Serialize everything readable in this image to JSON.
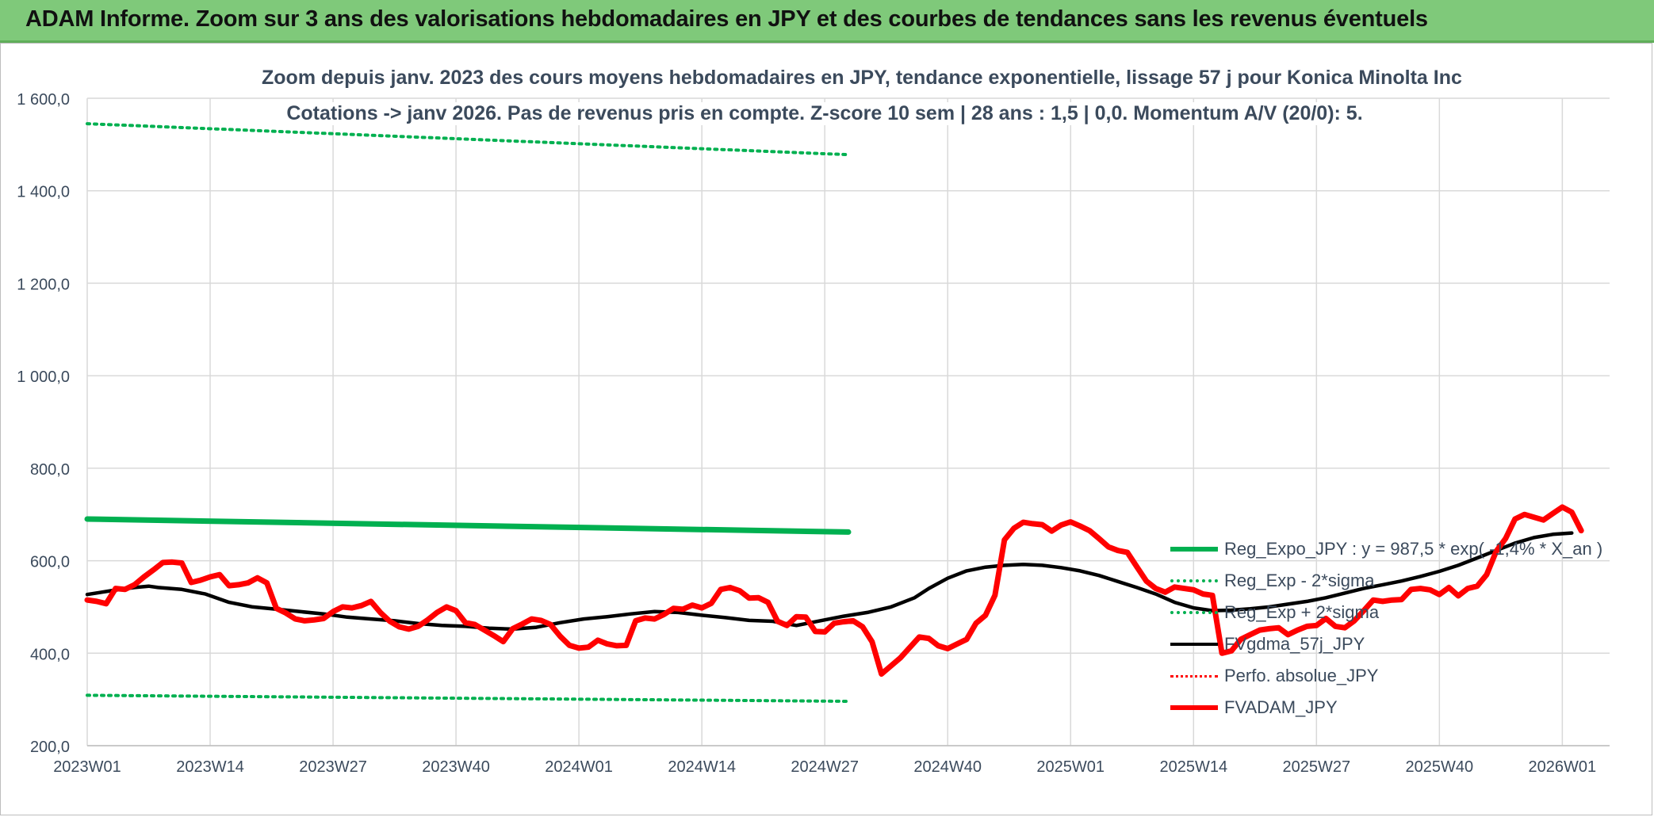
{
  "banner": {
    "title": "ADAM Informe. Zoom sur 3 ans des valorisations hebdomadaires en JPY et des courbes de tendances sans les revenus éventuels"
  },
  "chart_data": {
    "type": "line",
    "title": "Zoom depuis janv. 2023 des cours moyens hebdomadaires en JPY, tendance exponentielle, lissage 57 j pour Konica Minolta Inc",
    "subtitle": "Cotations -> janv 2026. Pas de revenus pris en compte. Z-score 10 sem | 28 ans : 1,5 | 0,0. Momentum A/V (20/0): 5.",
    "xlabel": "",
    "ylabel": "",
    "ylim": [
      200,
      1600
    ],
    "yticks": [
      "200,0",
      "400,0",
      "600,0",
      "800,0",
      "1 000,0",
      "1 200,0",
      "1 400,0",
      "1 600,0"
    ],
    "ytick_values": [
      200,
      400,
      600,
      800,
      1000,
      1200,
      1400,
      1600
    ],
    "xticks": [
      "2023W01",
      "2023W14",
      "2023W27",
      "2023W40",
      "2024W01",
      "2024W14",
      "2024W27",
      "2024W40",
      "2025W01",
      "2025W14",
      "2025W27",
      "2025W40",
      "2026W01"
    ],
    "xtick_index": [
      0,
      13,
      26,
      39,
      52,
      65,
      78,
      91,
      104,
      117,
      130,
      143,
      156
    ],
    "n_weeks": 162,
    "grid": true,
    "legend_position": "bottom-right",
    "series": [
      {
        "name": "Reg_Expo_JPY : y = 987,5 * exp( -1,4% * X_an )",
        "color": "#00b050",
        "style": "solid-thick",
        "points": [
          [
            0,
            690
          ],
          [
            161,
            662
          ]
        ]
      },
      {
        "name": "Reg_Exp - 2*sigma",
        "color": "#00b050",
        "style": "dotted",
        "points": [
          [
            0,
            309
          ],
          [
            161,
            296
          ]
        ]
      },
      {
        "name": "Reg_Exp + 2*sigma",
        "color": "#00b050",
        "style": "dotted",
        "points": [
          [
            0,
            1545
          ],
          [
            161,
            1478
          ]
        ]
      },
      {
        "name": "FVgdma_57j_JPY",
        "color": "#000000",
        "style": "solid",
        "points": [
          [
            0,
            527
          ],
          [
            5,
            535
          ],
          [
            10,
            542
          ],
          [
            13,
            545
          ],
          [
            15,
            542
          ],
          [
            20,
            538
          ],
          [
            25,
            528
          ],
          [
            30,
            510
          ],
          [
            35,
            500
          ],
          [
            40,
            495
          ],
          [
            45,
            490
          ],
          [
            50,
            485
          ],
          [
            55,
            478
          ],
          [
            60,
            474
          ],
          [
            65,
            470
          ],
          [
            70,
            464
          ],
          [
            75,
            460
          ],
          [
            80,
            458
          ],
          [
            85,
            454
          ],
          [
            90,
            452
          ],
          [
            95,
            456
          ],
          [
            100,
            466
          ],
          [
            105,
            474
          ],
          [
            110,
            479
          ],
          [
            115,
            485
          ],
          [
            120,
            490
          ],
          [
            125,
            488
          ],
          [
            130,
            482
          ],
          [
            135,
            477
          ],
          [
            140,
            471
          ],
          [
            145,
            469
          ],
          [
            150,
            460
          ],
          [
            155,
            470
          ],
          [
            160,
            480
          ],
          [
            165,
            488
          ],
          [
            170,
            500
          ],
          [
            175,
            520
          ],
          [
            178,
            540
          ],
          [
            182,
            562
          ],
          [
            186,
            578
          ],
          [
            190,
            586
          ],
          [
            194,
            590
          ],
          [
            198,
            592
          ],
          [
            202,
            590
          ],
          [
            206,
            585
          ],
          [
            210,
            578
          ],
          [
            214,
            568
          ],
          [
            218,
            555
          ],
          [
            222,
            542
          ],
          [
            226,
            528
          ],
          [
            230,
            510
          ],
          [
            234,
            498
          ],
          [
            238,
            492
          ],
          [
            242,
            493
          ],
          [
            246,
            496
          ],
          [
            250,
            500
          ],
          [
            254,
            506
          ],
          [
            258,
            512
          ],
          [
            262,
            520
          ],
          [
            266,
            530
          ],
          [
            270,
            540
          ],
          [
            274,
            548
          ],
          [
            278,
            556
          ],
          [
            282,
            566
          ],
          [
            286,
            577
          ],
          [
            290,
            590
          ],
          [
            294,
            606
          ],
          [
            298,
            622
          ],
          [
            302,
            638
          ],
          [
            306,
            650
          ],
          [
            310,
            657
          ],
          [
            314,
            660
          ]
        ]
      },
      {
        "name": "Perfo. absolue_JPY",
        "color": "#ff0000",
        "style": "dotted",
        "points": []
      },
      {
        "name": "FVADAM_JPY",
        "color": "#ff0000",
        "style": "solid-thick",
        "points": [
          [
            0,
            515
          ],
          [
            2,
            512
          ],
          [
            4,
            507
          ],
          [
            6,
            540
          ],
          [
            8,
            538
          ],
          [
            10,
            548
          ],
          [
            12,
            565
          ],
          [
            14,
            580
          ],
          [
            16,
            596
          ],
          [
            18,
            597
          ],
          [
            20,
            595
          ],
          [
            22,
            553
          ],
          [
            24,
            558
          ],
          [
            26,
            565
          ],
          [
            28,
            570
          ],
          [
            30,
            546
          ],
          [
            32,
            548
          ],
          [
            34,
            552
          ],
          [
            36,
            563
          ],
          [
            38,
            552
          ],
          [
            40,
            497
          ],
          [
            42,
            487
          ],
          [
            44,
            474
          ],
          [
            46,
            470
          ],
          [
            48,
            472
          ],
          [
            50,
            475
          ],
          [
            52,
            490
          ],
          [
            54,
            500
          ],
          [
            56,
            498
          ],
          [
            58,
            503
          ],
          [
            60,
            512
          ],
          [
            62,
            488
          ],
          [
            64,
            469
          ],
          [
            66,
            457
          ],
          [
            68,
            452
          ],
          [
            70,
            458
          ],
          [
            72,
            472
          ],
          [
            74,
            488
          ],
          [
            76,
            500
          ],
          [
            78,
            492
          ],
          [
            80,
            466
          ],
          [
            82,
            462
          ],
          [
            84,
            450
          ],
          [
            86,
            438
          ],
          [
            88,
            425
          ],
          [
            90,
            453
          ],
          [
            92,
            463
          ],
          [
            94,
            474
          ],
          [
            96,
            471
          ],
          [
            98,
            462
          ],
          [
            100,
            437
          ],
          [
            102,
            417
          ],
          [
            104,
            411
          ],
          [
            106,
            413
          ],
          [
            108,
            428
          ],
          [
            110,
            420
          ],
          [
            112,
            416
          ],
          [
            114,
            417
          ],
          [
            116,
            470
          ],
          [
            118,
            476
          ],
          [
            120,
            474
          ],
          [
            122,
            484
          ],
          [
            124,
            497
          ],
          [
            126,
            495
          ],
          [
            128,
            504
          ],
          [
            130,
            498
          ],
          [
            132,
            508
          ],
          [
            134,
            538
          ],
          [
            136,
            542
          ],
          [
            138,
            535
          ],
          [
            140,
            519
          ],
          [
            142,
            520
          ],
          [
            144,
            510
          ],
          [
            146,
            469
          ],
          [
            148,
            460
          ],
          [
            150,
            479
          ],
          [
            152,
            478
          ],
          [
            154,
            447
          ],
          [
            156,
            446
          ],
          [
            158,
            465
          ],
          [
            160,
            468
          ],
          [
            162,
            470
          ],
          [
            164,
            457
          ],
          [
            166,
            425
          ],
          [
            168,
            355
          ],
          [
            172,
            390
          ],
          [
            176,
            435
          ],
          [
            178,
            432
          ],
          [
            180,
            416
          ],
          [
            182,
            410
          ],
          [
            184,
            420
          ],
          [
            186,
            430
          ],
          [
            188,
            465
          ],
          [
            190,
            482
          ],
          [
            192,
            525
          ],
          [
            194,
            645
          ],
          [
            196,
            670
          ],
          [
            198,
            683
          ],
          [
            200,
            680
          ],
          [
            202,
            678
          ],
          [
            204,
            664
          ],
          [
            206,
            677
          ],
          [
            208,
            684
          ],
          [
            210,
            675
          ],
          [
            212,
            665
          ],
          [
            214,
            648
          ],
          [
            216,
            630
          ],
          [
            218,
            622
          ],
          [
            220,
            618
          ],
          [
            222,
            587
          ],
          [
            224,
            556
          ],
          [
            226,
            540
          ],
          [
            228,
            532
          ],
          [
            230,
            543
          ],
          [
            232,
            540
          ],
          [
            234,
            537
          ],
          [
            236,
            528
          ],
          [
            238,
            525
          ],
          [
            240,
            400
          ],
          [
            242,
            405
          ],
          [
            244,
            430
          ],
          [
            246,
            440
          ],
          [
            248,
            450
          ],
          [
            250,
            453
          ],
          [
            252,
            455
          ],
          [
            254,
            440
          ],
          [
            256,
            450
          ],
          [
            258,
            458
          ],
          [
            260,
            460
          ],
          [
            262,
            475
          ],
          [
            264,
            458
          ],
          [
            266,
            455
          ],
          [
            268,
            470
          ],
          [
            270,
            492
          ],
          [
            272,
            515
          ],
          [
            274,
            512
          ],
          [
            276,
            515
          ],
          [
            278,
            516
          ],
          [
            280,
            538
          ],
          [
            282,
            540
          ],
          [
            284,
            537
          ],
          [
            286,
            527
          ],
          [
            288,
            542
          ],
          [
            290,
            524
          ],
          [
            292,
            540
          ],
          [
            294,
            545
          ],
          [
            296,
            570
          ],
          [
            298,
            620
          ],
          [
            300,
            648
          ],
          [
            302,
            690
          ],
          [
            304,
            700
          ],
          [
            306,
            694
          ],
          [
            308,
            688
          ],
          [
            310,
            702
          ],
          [
            312,
            716
          ],
          [
            314,
            705
          ],
          [
            316,
            665
          ]
        ]
      }
    ]
  },
  "legend_icons": {
    "reg_expo": "green-thick-line",
    "reg_minus": "green-dotted-line",
    "reg_plus": "green-dotted-line",
    "fvgdma": "black-line",
    "perfo": "red-dotted-line",
    "fvadam": "red-thick-line"
  }
}
